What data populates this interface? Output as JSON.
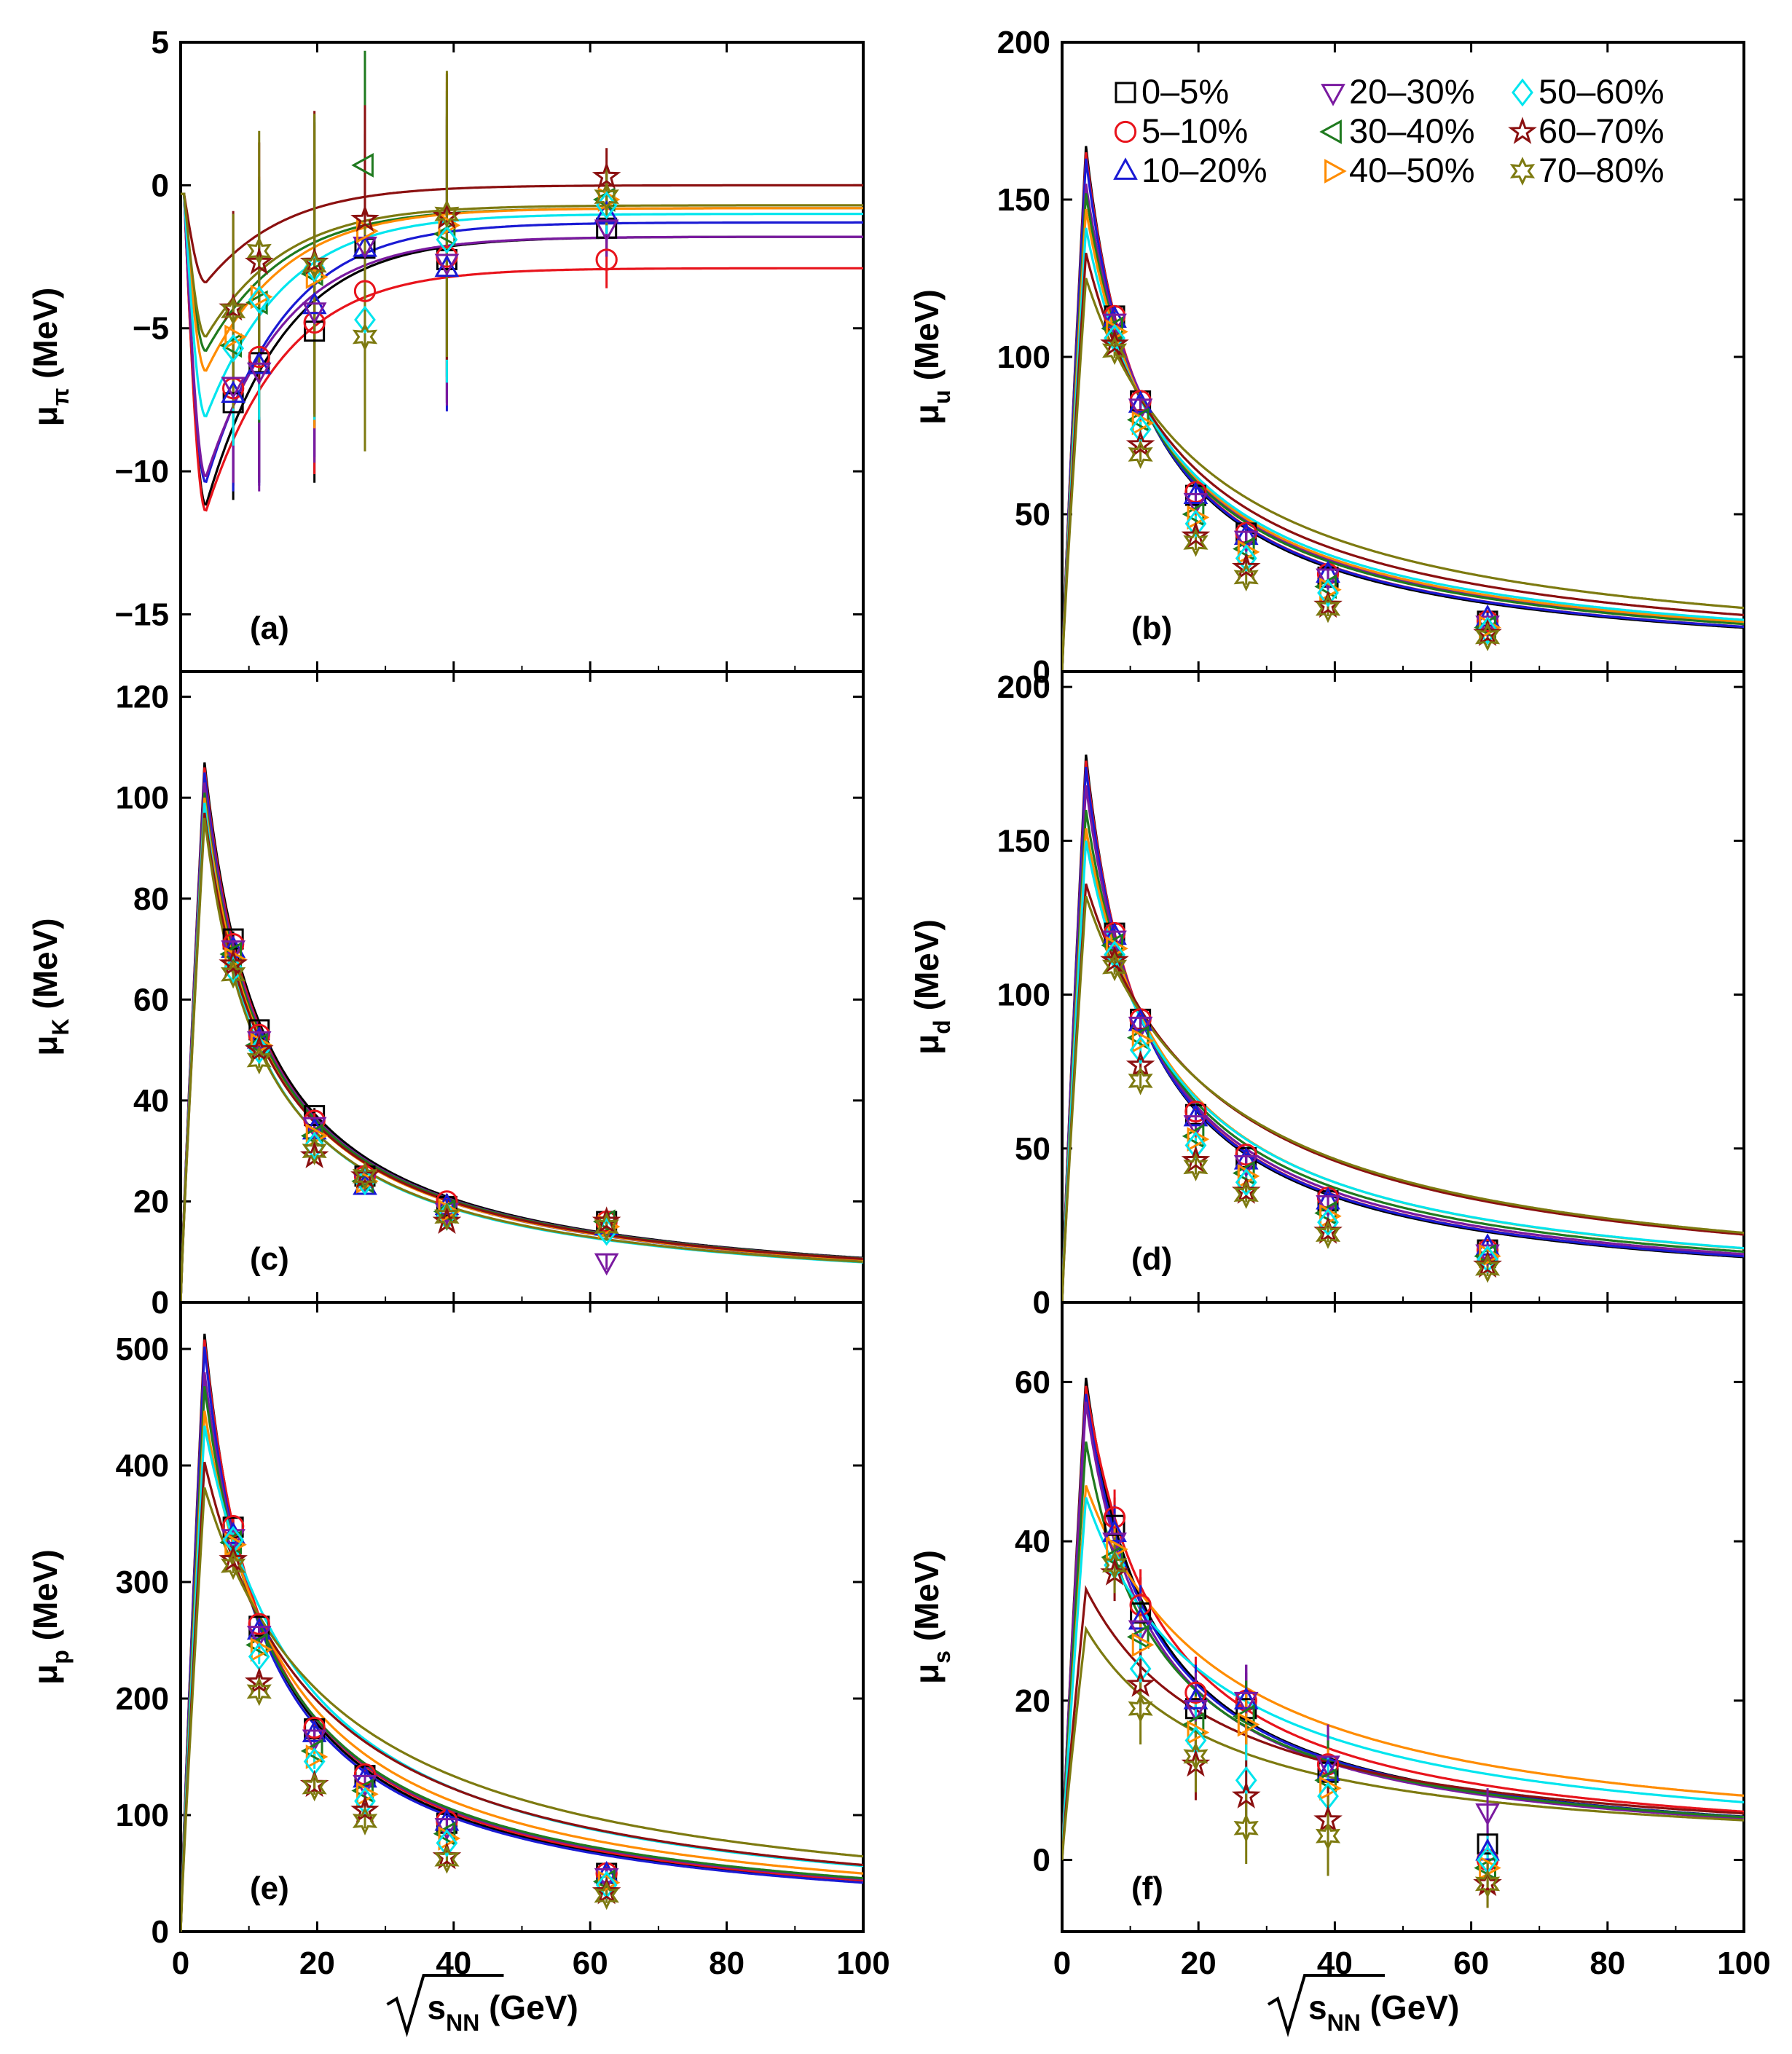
{
  "centralities": [
    {
      "label": "0–5%",
      "marker": "square",
      "color": "#000000"
    },
    {
      "label": "5–10%",
      "marker": "circle",
      "color": "#e8141c"
    },
    {
      "label": "10–20%",
      "marker": "triangle-up",
      "color": "#1a1ad4"
    },
    {
      "label": "20–30%",
      "marker": "triangle-down",
      "color": "#7a1aa0"
    },
    {
      "label": "30–40%",
      "marker": "triangle-left",
      "color": "#1f7a1f"
    },
    {
      "label": "40–50%",
      "marker": "triangle-right",
      "color": "#ff8c00"
    },
    {
      "label": "50–60%",
      "marker": "diamond",
      "color": "#00e5ee"
    },
    {
      "label": "60–70%",
      "marker": "star5",
      "color": "#8b1010"
    },
    {
      "label": "70–80%",
      "marker": "star6",
      "color": "#7d7a10"
    }
  ],
  "x_axis": {
    "label_prefix": "√",
    "label_main": "s",
    "label_sub": "NN",
    "label_suffix": " (GeV)",
    "xlim": [
      0,
      100
    ],
    "ticks": [
      0,
      20,
      40,
      60,
      80,
      100
    ]
  },
  "chart_data": [
    {
      "panel": "(a)",
      "type": "scatter-with-fit-lines",
      "ylabel_main": "μ",
      "ylabel_sub": "π",
      "ylabel_suffix": " (MeV)",
      "ylim": [
        -17,
        5
      ],
      "yticks": [
        5,
        0,
        -5,
        -10,
        -15
      ],
      "x": [
        7.7,
        11.5,
        19.6,
        27,
        39,
        62.4
      ],
      "series": [
        {
          "points": [
            -7.6,
            -6.2,
            -5.1,
            -2.2,
            -2.6,
            -1.5
          ],
          "fit_min": -11.2
        },
        {
          "points": [
            -7.1,
            -6.0,
            -4.8,
            -3.7,
            -2.5,
            -2.6
          ],
          "fit_min": -11.4
        },
        {
          "points": [
            -7.3,
            -6.3,
            -4.2,
            -2.2,
            -2.9,
            -1.0
          ],
          "fit_min": -10.4
        },
        {
          "points": [
            -7.0,
            -6.5,
            -4.4,
            -2.1,
            -2.7,
            -1.5
          ],
          "fit_min": -10.2
        },
        {
          "points": [
            -5.6,
            -4.1,
            -3.1,
            0.7,
            -1.7,
            -0.5
          ],
          "fit_min": -5.8
        },
        {
          "points": [
            -5.3,
            -3.9,
            -3.2,
            -1.6,
            -1.4,
            -0.5
          ],
          "fit_min": -6.5
        },
        {
          "points": [
            -5.7,
            -4.0,
            -2.9,
            -4.7,
            -1.9,
            -0.7
          ],
          "fit_min": -8.1
        },
        {
          "points": [
            -4.3,
            -2.7,
            -2.7,
            -1.2,
            -1.1,
            0.3
          ],
          "fit_min": -3.4
        },
        {
          "points": [
            -4.4,
            -2.3,
            -2.8,
            -5.3,
            -1.0,
            -0.4
          ],
          "fit_min": -5.3
        }
      ]
    },
    {
      "panel": "(b)",
      "type": "scatter-with-fit-lines",
      "ylabel_main": "μ",
      "ylabel_sub": "u",
      "ylabel_suffix": " (MeV)",
      "ylim": [
        0,
        200
      ],
      "yticks": [
        0,
        50,
        100,
        150,
        200
      ],
      "x": [
        7.7,
        11.5,
        19.6,
        27,
        39,
        62.4
      ],
      "series": [
        {
          "points": [
            113,
            86,
            56,
            44,
            30,
            16
          ],
          "fit_peak": 167
        },
        {
          "points": [
            113,
            86,
            57,
            44,
            31,
            16
          ],
          "fit_peak": 165
        },
        {
          "points": [
            112,
            85,
            56,
            43,
            31,
            17
          ],
          "fit_peak": 163
        },
        {
          "points": [
            111,
            84,
            54,
            42,
            30,
            15
          ],
          "fit_peak": 155
        },
        {
          "points": [
            109,
            80,
            50,
            39,
            27,
            14
          ],
          "fit_peak": 152
        },
        {
          "points": [
            108,
            79,
            49,
            38,
            26,
            14
          ],
          "fit_peak": 147
        },
        {
          "points": [
            106,
            77,
            47,
            36,
            25,
            13
          ],
          "fit_peak": 141
        },
        {
          "points": [
            104,
            72,
            43,
            33,
            21,
            12
          ],
          "fit_peak": 133
        },
        {
          "points": [
            102,
            69,
            41,
            30,
            20,
            11
          ],
          "fit_peak": 125
        }
      ]
    },
    {
      "panel": "(c)",
      "type": "scatter-with-fit-lines",
      "ylabel_main": "μ",
      "ylabel_sub": "K",
      "ylabel_suffix": " (MeV)",
      "ylim": [
        0,
        125
      ],
      "yticks": [
        0,
        20,
        40,
        60,
        80,
        100,
        120
      ],
      "x": [
        7.7,
        11.5,
        19.6,
        27,
        39,
        62.4
      ],
      "series": [
        {
          "points": [
            72,
            54,
            37,
            25,
            19,
            16
          ],
          "fit_peak": 107
        },
        {
          "points": [
            71,
            53,
            36,
            25,
            20,
            16
          ],
          "fit_peak": 106
        },
        {
          "points": [
            70,
            52,
            34,
            23,
            19,
            15
          ],
          "fit_peak": 105
        },
        {
          "points": [
            70,
            52,
            35,
            24,
            18,
            8
          ],
          "fit_peak": 103
        },
        {
          "points": [
            69,
            51,
            33,
            24,
            18,
            16
          ],
          "fit_peak": 101
        },
        {
          "points": [
            68,
            51,
            33,
            24,
            18,
            15
          ],
          "fit_peak": 100
        },
        {
          "points": [
            66,
            50,
            31,
            24,
            17,
            14
          ],
          "fit_peak": 99
        },
        {
          "points": [
            67,
            50,
            29,
            25,
            16,
            16
          ],
          "fit_peak": 97
        },
        {
          "points": [
            65,
            48,
            30,
            25,
            17,
            15
          ],
          "fit_peak": 96
        }
      ]
    },
    {
      "panel": "(d)",
      "type": "scatter-with-fit-lines",
      "ylabel_main": "μ",
      "ylabel_sub": "d",
      "ylabel_suffix": " (MeV)",
      "ylim": [
        0,
        205
      ],
      "yticks": [
        0,
        50,
        100,
        150,
        200
      ],
      "x": [
        7.7,
        11.5,
        19.6,
        27,
        39,
        62.4
      ],
      "series": [
        {
          "points": [
            120,
            92,
            61,
            47,
            33,
            17
          ],
          "fit_peak": 178
        },
        {
          "points": [
            120,
            92,
            62,
            48,
            34,
            17
          ],
          "fit_peak": 176
        },
        {
          "points": [
            119,
            91,
            60,
            46,
            33,
            18
          ],
          "fit_peak": 174
        },
        {
          "points": [
            118,
            90,
            58,
            45,
            32,
            16
          ],
          "fit_peak": 168
        },
        {
          "points": [
            116,
            86,
            54,
            42,
            29,
            15
          ],
          "fit_peak": 160
        },
        {
          "points": [
            115,
            85,
            53,
            41,
            28,
            15
          ],
          "fit_peak": 154
        },
        {
          "points": [
            113,
            82,
            51,
            39,
            26,
            14
          ],
          "fit_peak": 150
        },
        {
          "points": [
            111,
            77,
            46,
            36,
            23,
            12
          ],
          "fit_peak": 136
        },
        {
          "points": [
            109,
            72,
            44,
            35,
            22,
            11
          ],
          "fit_peak": 132
        }
      ]
    },
    {
      "panel": "(e)",
      "type": "scatter-with-fit-lines",
      "ylabel_main": "μ",
      "ylabel_sub": "p",
      "ylabel_suffix": " (MeV)",
      "ylim": [
        0,
        540
      ],
      "yticks": [
        0,
        100,
        200,
        300,
        400,
        500
      ],
      "x": [
        7.7,
        11.5,
        19.6,
        27,
        39,
        62.4
      ],
      "series": [
        {
          "points": [
            347,
            262,
            174,
            134,
            93,
            50
          ],
          "fit_peak": 513
        },
        {
          "points": [
            348,
            264,
            175,
            135,
            95,
            50
          ],
          "fit_peak": 508
        },
        {
          "points": [
            340,
            258,
            170,
            131,
            94,
            49
          ],
          "fit_peak": 502
        },
        {
          "points": [
            338,
            255,
            166,
            127,
            90,
            47
          ],
          "fit_peak": 480
        },
        {
          "points": [
            334,
            246,
            155,
            121,
            84,
            43
          ],
          "fit_peak": 468
        },
        {
          "points": [
            332,
            242,
            150,
            118,
            80,
            42
          ],
          "fit_peak": 447
        },
        {
          "points": [
            336,
            236,
            146,
            112,
            76,
            40
          ],
          "fit_peak": 434
        },
        {
          "points": [
            319,
            214,
            126,
            104,
            64,
            34
          ],
          "fit_peak": 403
        },
        {
          "points": [
            314,
            206,
            124,
            95,
            62,
            31
          ],
          "fit_peak": 381
        }
      ]
    },
    {
      "panel": "(f)",
      "type": "scatter-with-fit-lines",
      "ylabel_main": "μ",
      "ylabel_sub": "s",
      "ylabel_suffix": " (MeV)",
      "ylim": [
        -9,
        70
      ],
      "yticks": [
        0,
        20,
        40,
        60
      ],
      "x": [
        7.7,
        11.5,
        19.6,
        27,
        39,
        62.4
      ],
      "series": [
        {
          "points": [
            42,
            31,
            19,
            19,
            11,
            2
          ],
          "fit_peak": 60.5
        },
        {
          "points": [
            43,
            32,
            21,
            20,
            12,
            0
          ],
          "fit_peak": 59.5
        },
        {
          "points": [
            41,
            30,
            20,
            20,
            11,
            1
          ],
          "fit_peak": 58.5
        },
        {
          "points": [
            40,
            29,
            19,
            20,
            12,
            6
          ],
          "fit_peak": 57.5
        },
        {
          "points": [
            38,
            28,
            17,
            18,
            10,
            -1
          ],
          "fit_peak": 52.5
        },
        {
          "points": [
            39,
            27,
            16,
            17,
            9,
            -1
          ],
          "fit_peak": 47
        },
        {
          "points": [
            37,
            24,
            15,
            10,
            8,
            0
          ],
          "fit_peak": 45.5
        },
        {
          "points": [
            36,
            22,
            12,
            8,
            5,
            -3
          ],
          "fit_peak": 34
        },
        {
          "points": [
            37,
            19,
            13,
            4,
            3,
            -3
          ],
          "fit_peak": 29
        }
      ]
    }
  ]
}
